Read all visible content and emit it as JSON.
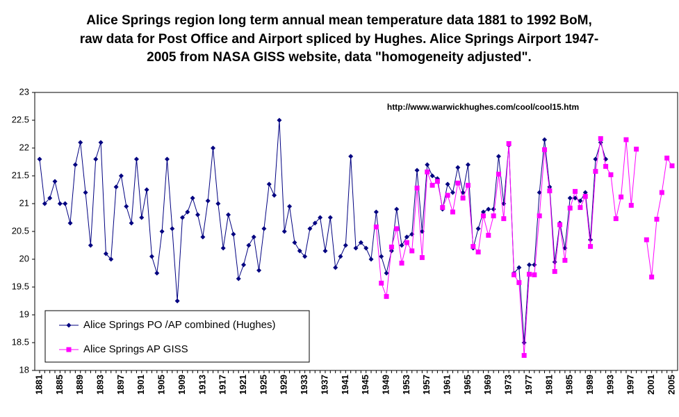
{
  "chart_data": {
    "type": "line",
    "title": [
      "Alice Springs region long term annual mean temperature data 1881 to 1992 BoM,",
      "raw data for Post Office and Airport spliced by Hughes.  Alice Springs Airport 1947-",
      "2005 from NASA GISS website, data \"homogeneity adjusted\"."
    ],
    "annotation": "http://www.warwickhughes.com/cool/cool15.htm",
    "categories": [
      "1881",
      null,
      null,
      null,
      "1885",
      null,
      null,
      null,
      "1889",
      null,
      null,
      null,
      "1893",
      null,
      null,
      null,
      "1897",
      null,
      null,
      null,
      "1901",
      null,
      null,
      null,
      "1905",
      null,
      null,
      null,
      "1909",
      null,
      null,
      null,
      "1913",
      null,
      null,
      null,
      "1917",
      null,
      null,
      null,
      "1921",
      null,
      null,
      null,
      "1925",
      null,
      null,
      null,
      "1929",
      null,
      null,
      null,
      "1933",
      null,
      null,
      null,
      "1937",
      null,
      null,
      null,
      "1941",
      null,
      null,
      null,
      "1945",
      null,
      null,
      null,
      "1949",
      null,
      null,
      null,
      "1953",
      null,
      null,
      null,
      "1957",
      null,
      null,
      null,
      "1961",
      null,
      null,
      null,
      "1965",
      null,
      null,
      null,
      "1969",
      null,
      null,
      null,
      "1973",
      null,
      null,
      null,
      "1977",
      null,
      null,
      null,
      "1981",
      null,
      null,
      null,
      "1985",
      null,
      null,
      null,
      "1989",
      null,
      null,
      null,
      "1993",
      null,
      null,
      null,
      "1997",
      null,
      null,
      null,
      "2001",
      null,
      null,
      null,
      "2005"
    ],
    "series": [
      {
        "name": "Alice Springs PO /AP combined (Hughes)",
        "color": "#000080",
        "marker": "diamond",
        "values": [
          21.8,
          21.0,
          21.1,
          21.4,
          21.0,
          21.0,
          20.65,
          21.7,
          22.1,
          21.2,
          20.25,
          21.8,
          22.1,
          20.1,
          20.0,
          21.3,
          21.5,
          20.95,
          20.65,
          21.8,
          20.75,
          21.25,
          20.05,
          19.75,
          20.5,
          21.8,
          20.55,
          19.25,
          20.75,
          20.85,
          21.1,
          20.8,
          20.4,
          21.05,
          22.0,
          21.0,
          20.2,
          20.8,
          20.45,
          19.65,
          19.9,
          20.25,
          20.4,
          19.8,
          20.55,
          21.35,
          21.15,
          22.5,
          20.5,
          20.95,
          20.3,
          20.15,
          20.05,
          20.55,
          20.65,
          20.75,
          20.15,
          20.75,
          19.85,
          20.05,
          20.25,
          21.85,
          20.2,
          20.3,
          20.2,
          20.0,
          20.85,
          20.05,
          19.75,
          20.15,
          20.9,
          20.25,
          20.4,
          20.45,
          21.6,
          20.5,
          21.7,
          21.5,
          21.45,
          20.9,
          21.35,
          21.2,
          21.65,
          21.2,
          21.7,
          20.2,
          20.55,
          20.85,
          20.9,
          20.9,
          21.85,
          21.0,
          22.05,
          19.75,
          19.85,
          18.5,
          19.9,
          19.9,
          21.2,
          22.15,
          21.3,
          19.95,
          20.65,
          20.2,
          21.1,
          21.1,
          21.05,
          21.2,
          20.35,
          21.8,
          22.1,
          21.8,
          null,
          null,
          null,
          null,
          null,
          null,
          null,
          null,
          null,
          null,
          null,
          null,
          null
        ]
      },
      {
        "name": "Alice Springs AP GISS",
        "color": "#ff00ff",
        "marker": "square",
        "values": [
          null,
          null,
          null,
          null,
          null,
          null,
          null,
          null,
          null,
          null,
          null,
          null,
          null,
          null,
          null,
          null,
          null,
          null,
          null,
          null,
          null,
          null,
          null,
          null,
          null,
          null,
          null,
          null,
          null,
          null,
          null,
          null,
          null,
          null,
          null,
          null,
          null,
          null,
          null,
          null,
          null,
          null,
          null,
          null,
          null,
          null,
          null,
          null,
          null,
          null,
          null,
          null,
          null,
          null,
          null,
          null,
          null,
          null,
          null,
          null,
          null,
          null,
          null,
          null,
          null,
          null,
          20.58,
          19.57,
          19.33,
          20.22,
          20.55,
          19.93,
          20.3,
          20.15,
          21.28,
          20.03,
          21.57,
          21.33,
          21.4,
          20.93,
          21.15,
          20.85,
          21.37,
          21.1,
          21.33,
          20.23,
          20.13,
          20.78,
          20.43,
          20.78,
          21.53,
          20.73,
          22.08,
          19.72,
          19.58,
          18.27,
          19.73,
          19.72,
          20.78,
          21.97,
          21.23,
          19.78,
          20.62,
          19.98,
          20.92,
          21.22,
          20.93,
          21.13,
          20.23,
          21.58,
          22.17,
          21.67,
          21.52,
          20.73,
          21.12,
          22.15,
          20.97,
          21.98,
          null,
          20.35,
          19.68,
          20.72,
          21.2,
          21.82,
          21.68
        ]
      }
    ],
    "ylim": [
      18,
      23
    ],
    "yticks": [
      18,
      18.5,
      19,
      19.5,
      20,
      20.5,
      21,
      21.5,
      22,
      22.5,
      23
    ],
    "grid": false,
    "legend": "lower left"
  }
}
